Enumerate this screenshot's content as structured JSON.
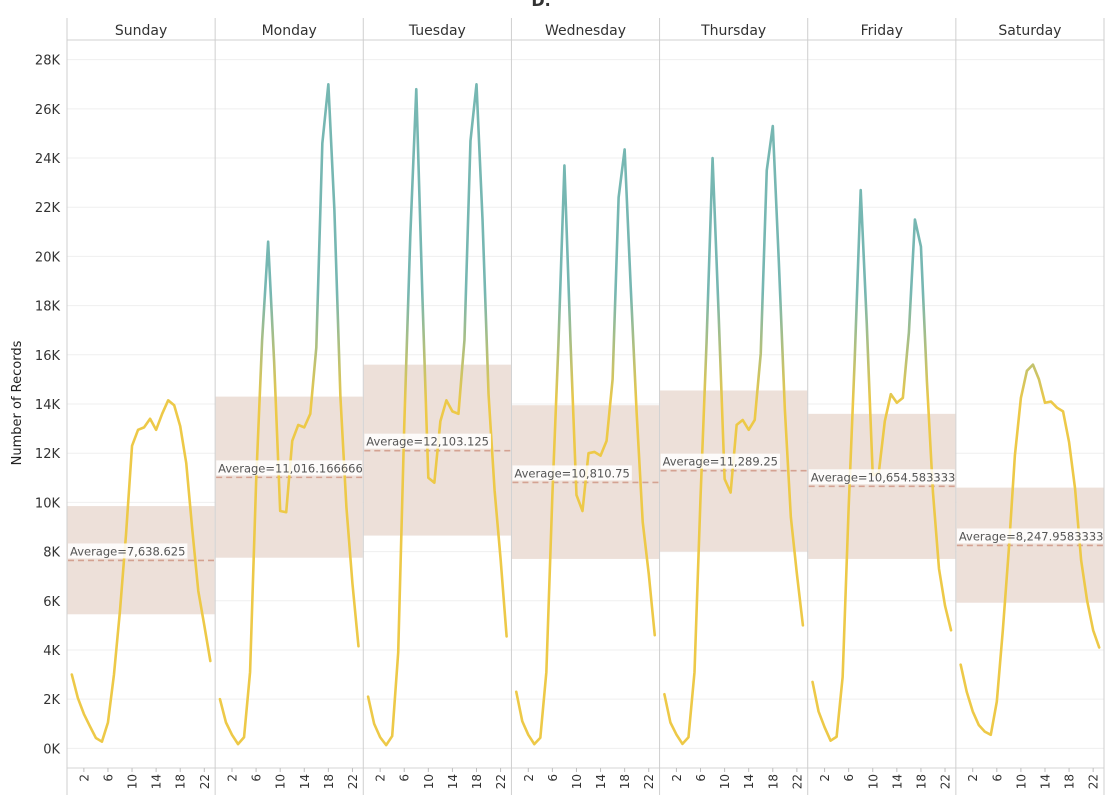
{
  "chart_data": {
    "type": "line",
    "title": "D.",
    "ylabel": "Number of Records",
    "ylim": [
      -800,
      28800
    ],
    "y_ticks": [
      0,
      2000,
      4000,
      6000,
      8000,
      10000,
      12000,
      14000,
      16000,
      18000,
      20000,
      22000,
      24000,
      26000,
      28000
    ],
    "y_tick_labels": [
      "0K",
      "2K",
      "4K",
      "6K",
      "8K",
      "10K",
      "12K",
      "14K",
      "16K",
      "18K",
      "20K",
      "22K",
      "24K",
      "26K",
      "28K"
    ],
    "x": [
      0,
      1,
      2,
      3,
      4,
      5,
      6,
      7,
      8,
      9,
      10,
      11,
      12,
      13,
      14,
      15,
      16,
      17,
      18,
      19,
      20,
      21,
      22,
      23
    ],
    "x_ticks": [
      2,
      6,
      10,
      14,
      18,
      22
    ],
    "x_tick_labels": [
      "2",
      "6",
      "10",
      "14",
      "18",
      "22"
    ],
    "xlim": [
      -0.8,
      23.8
    ],
    "gradient_colors": [
      "#edc948",
      "#76b7b2"
    ],
    "band_color": "#ede0d9",
    "avg_line_color": "#d4a292",
    "grid": true,
    "panels": [
      {
        "name": "Sunday",
        "avg_label": "Average=7,638.625",
        "average": 7638.625,
        "band": [
          5450,
          9850
        ],
        "values": [
          3000,
          2050,
          1400,
          900,
          420,
          270,
          1050,
          3000,
          5600,
          8700,
          12300,
          12950,
          13050,
          13400,
          12950,
          13600,
          14150,
          13950,
          13100,
          11600,
          8900,
          6400,
          5000,
          3550
        ]
      },
      {
        "name": "Monday",
        "avg_label": "Average=11,016.1666666",
        "average": 11016.1666666,
        "band": [
          7750,
          14300
        ],
        "values": [
          2000,
          1050,
          550,
          170,
          450,
          3100,
          10800,
          16600,
          20600,
          15700,
          9650,
          9600,
          12500,
          13150,
          13050,
          13600,
          16300,
          24600,
          27000,
          21900,
          14300,
          9800,
          6700,
          4150
        ]
      },
      {
        "name": "Tuesday",
        "avg_label": "Average=12,103.125",
        "average": 12103.125,
        "band": [
          8650,
          15600
        ],
        "values": [
          2100,
          1000,
          450,
          130,
          500,
          3900,
          13100,
          20800,
          26800,
          18500,
          11000,
          10800,
          13300,
          14150,
          13700,
          13600,
          16600,
          24700,
          27000,
          21500,
          14400,
          10500,
          7700,
          4550
        ]
      },
      {
        "name": "Wednesday",
        "avg_label": "Average=10,810.75",
        "average": 10810.75,
        "band": [
          7700,
          13950
        ],
        "values": [
          2300,
          1100,
          550,
          170,
          430,
          3100,
          10300,
          16400,
          23700,
          16600,
          10300,
          9650,
          12000,
          12050,
          11900,
          12500,
          15000,
          22400,
          24350,
          18800,
          13600,
          9200,
          7100,
          4600
        ]
      },
      {
        "name": "Thursday",
        "avg_label": "Average=11,289.25",
        "average": 11289.25,
        "band": [
          8000,
          14550
        ],
        "values": [
          2200,
          1050,
          560,
          180,
          450,
          3100,
          10200,
          16500,
          24000,
          17700,
          10950,
          10400,
          13150,
          13350,
          12950,
          13350,
          16050,
          23500,
          25300,
          19800,
          13800,
          9400,
          7100,
          5000
        ]
      },
      {
        "name": "Friday",
        "avg_label": "Average=10,654.5833333",
        "average": 10654.5833333,
        "band": [
          7700,
          13600
        ],
        "values": [
          2700,
          1500,
          860,
          310,
          470,
          2900,
          9800,
          15800,
          22700,
          17300,
          11100,
          11200,
          13300,
          14400,
          14050,
          14250,
          16900,
          21500,
          20400,
          14900,
          10400,
          7300,
          5800,
          4800
        ]
      },
      {
        "name": "Saturday",
        "avg_label": "Average=8,247.958333333",
        "average": 8247.958333333,
        "band": [
          5920,
          10600
        ],
        "values": [
          3400,
          2300,
          1500,
          950,
          680,
          550,
          1900,
          4800,
          8100,
          11900,
          14250,
          15350,
          15600,
          15000,
          14050,
          14100,
          13850,
          13700,
          12450,
          10550,
          7650,
          6000,
          4800,
          4100
        ]
      }
    ]
  }
}
